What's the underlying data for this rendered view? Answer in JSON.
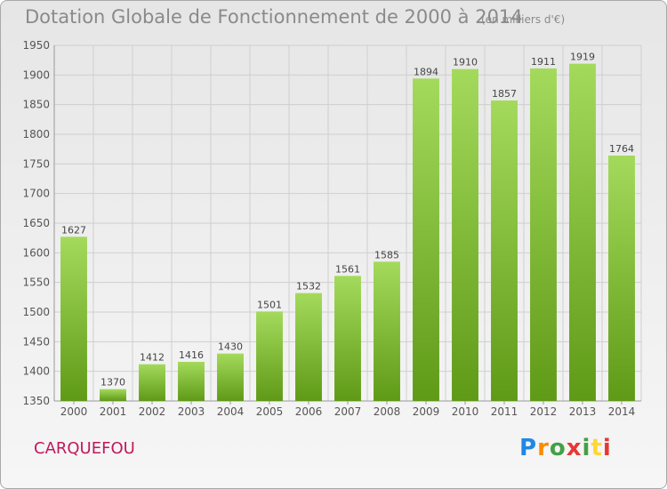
{
  "header": {
    "title": "Dotation Globale de Fonctionnement de 2000 à 2014",
    "units": "(en milliers d'€)"
  },
  "footer": {
    "city": "CARQUEFOU",
    "logo": [
      "P",
      "r",
      "o",
      "x",
      "i",
      "t",
      "i"
    ]
  },
  "colors": {
    "bar_light": "#a4da5c",
    "bar_dark": "#5f9a17",
    "grid": "#cfcfcf",
    "city": "#c2185b"
  },
  "chart_data": {
    "type": "bar",
    "title": "Dotation Globale de Fonctionnement de 2000 à 2014",
    "xlabel": "",
    "ylabel": "",
    "categories": [
      "2000",
      "2001",
      "2002",
      "2003",
      "2004",
      "2005",
      "2006",
      "2007",
      "2008",
      "2009",
      "2010",
      "2011",
      "2012",
      "2013",
      "2014"
    ],
    "values": [
      1627,
      1370,
      1412,
      1416,
      1430,
      1501,
      1532,
      1561,
      1585,
      1894,
      1910,
      1857,
      1911,
      1919,
      1764
    ],
    "ylim": [
      1350,
      1950
    ],
    "yticks": [
      1350,
      1400,
      1450,
      1500,
      1550,
      1600,
      1650,
      1700,
      1750,
      1800,
      1850,
      1900,
      1950
    ],
    "grid": true,
    "legend": "none"
  }
}
